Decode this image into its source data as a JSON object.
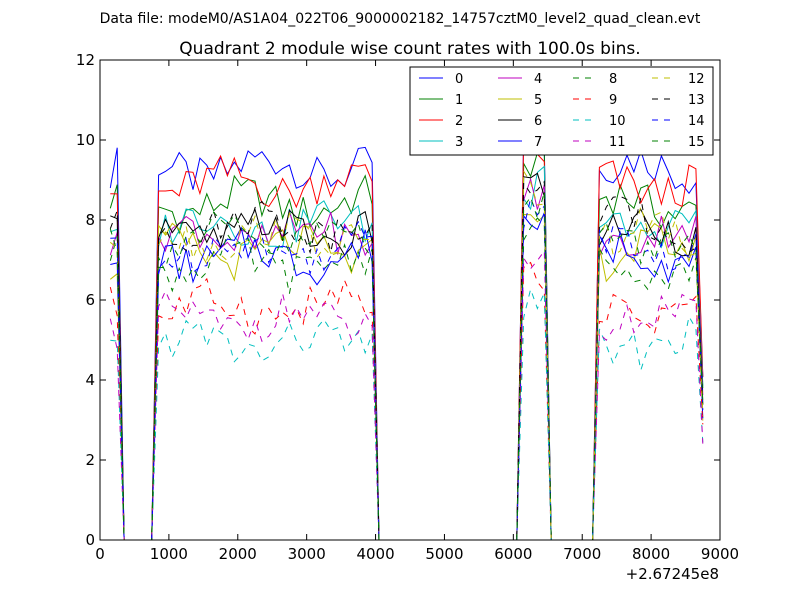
{
  "chart_data": {
    "type": "line",
    "suptitle": "Data file: modeM0/AS1A04_022T06_9000002182_14757cztM0_level2_quad_clean.evt",
    "title": "Quadrant 2 module wise count rates with 100.0s bins.",
    "xlabel": "",
    "ylabel": "",
    "x_offset_label": "+2.67245e8",
    "xlim": [
      0,
      9000
    ],
    "ylim": [
      0,
      12
    ],
    "xticks": [
      0,
      1000,
      2000,
      3000,
      4000,
      5000,
      6000,
      7000,
      8000,
      9000
    ],
    "yticks": [
      0,
      2,
      4,
      6,
      8,
      10,
      12
    ],
    "xticklabels": [
      "0",
      "1000",
      "2000",
      "3000",
      "4000",
      "5000",
      "6000",
      "7000",
      "8000",
      "9000"
    ],
    "yticklabels": [
      "0",
      "2",
      "4",
      "6",
      "8",
      "10",
      "12"
    ],
    "grid": false,
    "legend_position": "top-right",
    "x": [
      150,
      250,
      350,
      450,
      550,
      650,
      750,
      850,
      950,
      1050,
      1150,
      1250,
      1350,
      1450,
      1550,
      1650,
      1750,
      1850,
      1950,
      2050,
      2150,
      2250,
      2350,
      2450,
      2550,
      2650,
      2750,
      2850,
      2950,
      3050,
      3150,
      3250,
      3350,
      3450,
      3550,
      3650,
      3750,
      3850,
      3950,
      4050,
      4150,
      4250,
      4350,
      4450,
      4550,
      4650,
      4750,
      4850,
      4950,
      5050,
      5150,
      5250,
      5350,
      5450,
      5550,
      5650,
      5750,
      5850,
      5950,
      6050,
      6150,
      6250,
      6350,
      6450,
      6550,
      6650,
      6750,
      6850,
      6950,
      7050,
      7150,
      7250,
      7350,
      7450,
      7550,
      7650,
      7750,
      7850,
      7950,
      8050,
      8150,
      8250,
      8350,
      8450,
      8550,
      8650,
      8750
    ],
    "segments": [
      [
        0,
        2
      ],
      [
        6,
        39
      ],
      [
        59,
        64
      ],
      [
        70,
        86
      ]
    ],
    "zero_ranges": [
      [
        2,
        6
      ],
      [
        39,
        59
      ],
      [
        64,
        70
      ]
    ],
    "series": [
      {
        "name": "0",
        "color": "#0000ff",
        "dash": false,
        "level": 9.3
      },
      {
        "name": "1",
        "color": "#008000",
        "dash": false,
        "level": 8.4
      },
      {
        "name": "2",
        "color": "#ff0000",
        "dash": false,
        "level": 8.9
      },
      {
        "name": "3",
        "color": "#00bfbf",
        "dash": false,
        "level": 7.9
      },
      {
        "name": "4",
        "color": "#bf00bf",
        "dash": false,
        "level": 7.6
      },
      {
        "name": "5",
        "color": "#bfbf00",
        "dash": false,
        "level": 7.2
      },
      {
        "name": "6",
        "color": "#000000",
        "dash": false,
        "level": 7.7
      },
      {
        "name": "7",
        "color": "#0000ff",
        "dash": false,
        "level": 7.1
      },
      {
        "name": "8",
        "color": "#008000",
        "dash": true,
        "level": 6.9
      },
      {
        "name": "9",
        "color": "#ff0000",
        "dash": true,
        "level": 5.8
      },
      {
        "name": "10",
        "color": "#00bfbf",
        "dash": true,
        "level": 4.9
      },
      {
        "name": "11",
        "color": "#bf00bf",
        "dash": true,
        "level": 5.5
      },
      {
        "name": "12",
        "color": "#bfbf00",
        "dash": true,
        "level": 7.6
      },
      {
        "name": "13",
        "color": "#000000",
        "dash": true,
        "level": 7.9
      },
      {
        "name": "14",
        "color": "#0000ff",
        "dash": true,
        "level": 7.3
      },
      {
        "name": "15",
        "color": "#008000",
        "dash": true,
        "level": 7.5
      }
    ]
  }
}
